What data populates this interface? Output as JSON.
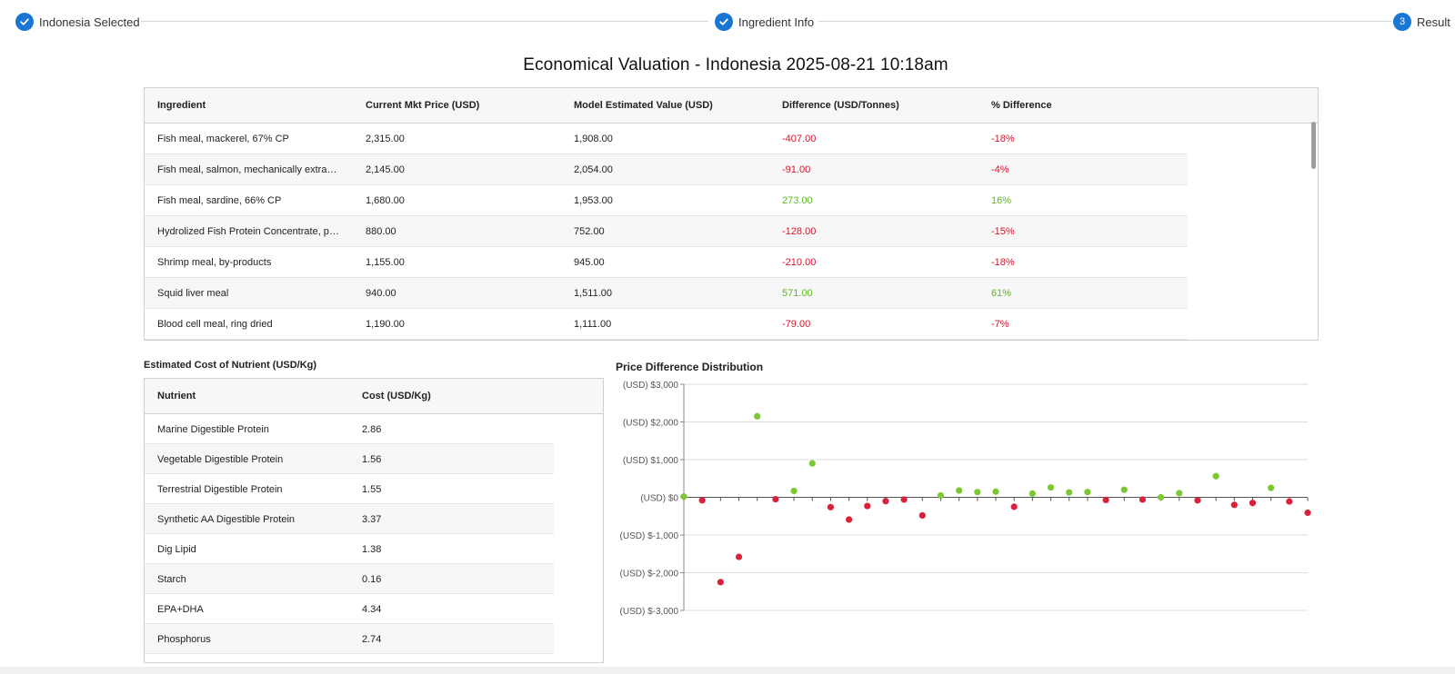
{
  "stepper": {
    "steps": [
      {
        "label": "Indonesia Selected",
        "state": "done"
      },
      {
        "label": "Ingredient Info",
        "state": "done"
      },
      {
        "label": "Result",
        "number": "3",
        "state": "active"
      }
    ]
  },
  "page": {
    "title": "Economical Valuation - Indonesia 2025-08-21 10:18am"
  },
  "ingredients": {
    "headers": [
      "Ingredient",
      "Current Mkt Price (USD)",
      "Model Estimated Value (USD)",
      "Difference (USD/Tonnes)",
      "% Difference"
    ],
    "rows": [
      {
        "name": "Fish meal, mackerel, 67% CP",
        "price": "2,315.00",
        "model": "1,908.00",
        "diff": "-407.00",
        "pct": "-18%"
      },
      {
        "name": "Fish meal, salmon, mechanically extract...",
        "price": "2,145.00",
        "model": "2,054.00",
        "diff": "-91.00",
        "pct": "-4%"
      },
      {
        "name": "Fish meal, sardine, 66% CP",
        "price": "1,680.00",
        "model": "1,953.00",
        "diff": "273.00",
        "pct": "16%"
      },
      {
        "name": "Hydrolized Fish Protein Concentrate, pa...",
        "price": "880.00",
        "model": "752.00",
        "diff": "-128.00",
        "pct": "-15%"
      },
      {
        "name": "Shrimp meal, by-products",
        "price": "1,155.00",
        "model": "945.00",
        "diff": "-210.00",
        "pct": "-18%"
      },
      {
        "name": "Squid liver meal",
        "price": "940.00",
        "model": "1,511.00",
        "diff": "571.00",
        "pct": "61%"
      },
      {
        "name": "Blood cell meal, ring dried",
        "price": "1,190.00",
        "model": "1,111.00",
        "diff": "-79.00",
        "pct": "-7%"
      }
    ]
  },
  "nutrients": {
    "title": "Estimated Cost of Nutrient (USD/Kg)",
    "headers": [
      "Nutrient",
      "Cost (USD/Kg)"
    ],
    "rows": [
      {
        "name": "Marine Digestible Protein",
        "cost": "2.86"
      },
      {
        "name": "Vegetable Digestible Protein",
        "cost": "1.56"
      },
      {
        "name": "Terrestrial Digestible Protein",
        "cost": "1.55"
      },
      {
        "name": "Synthetic AA Digestible Protein",
        "cost": "3.37"
      },
      {
        "name": "Dig Lipid",
        "cost": "1.38"
      },
      {
        "name": "Starch",
        "cost": "0.16"
      },
      {
        "name": "EPA+DHA",
        "cost": "4.34"
      },
      {
        "name": "Phosphorus",
        "cost": "2.74"
      }
    ]
  },
  "chart_data": {
    "type": "scatter",
    "title": "Price Difference Distribution",
    "ylim": [
      -3000,
      3000
    ],
    "yticks": [
      {
        "value": 3000,
        "label": "(USD) $3,000"
      },
      {
        "value": 2000,
        "label": "(USD) $2,000"
      },
      {
        "value": 1000,
        "label": "(USD) $1,000"
      },
      {
        "value": 0,
        "label": "(USD) $0"
      },
      {
        "value": -1000,
        "label": "(USD) $-1,000"
      },
      {
        "value": -2000,
        "label": "(USD) $-2,000"
      },
      {
        "value": -3000,
        "label": "(USD) $-3,000"
      }
    ],
    "grid": true,
    "positive_color": "#7cc832",
    "negative_color": "#d9223a",
    "values": [
      20,
      -80,
      -2250,
      -1580,
      2150,
      -50,
      170,
      900,
      -260,
      -590,
      -230,
      -100,
      -60,
      -480,
      50,
      180,
      140,
      150,
      -250,
      100,
      260,
      130,
      140,
      -70,
      200,
      -60,
      0,
      110,
      -80,
      560,
      -200,
      -150,
      250,
      -110,
      -410
    ]
  }
}
